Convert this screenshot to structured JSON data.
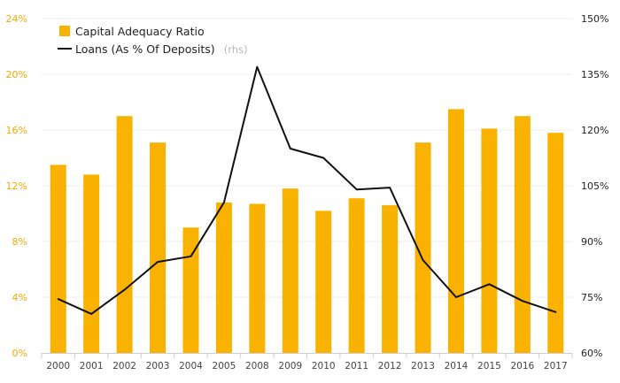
{
  "chart_data": {
    "type": "bar",
    "categories": [
      "2000",
      "2001",
      "2002",
      "2003",
      "2004",
      "2005",
      "2008",
      "2009",
      "2010",
      "2011",
      "2012",
      "2013",
      "2014",
      "2015",
      "2016",
      "2017"
    ],
    "series": [
      {
        "name": "Capital Adequacy Ratio",
        "type": "bar",
        "axis": "left",
        "values": [
          13.5,
          12.8,
          17.0,
          15.1,
          9.0,
          10.8,
          10.7,
          11.8,
          10.2,
          11.1,
          10.6,
          15.1,
          17.5,
          16.1,
          17.0,
          15.8
        ]
      },
      {
        "name": "Loans (As % Of Deposits)",
        "type": "line",
        "axis": "right",
        "values": [
          74.5,
          70.5,
          77.0,
          84.5,
          86.0,
          100.5,
          137.0,
          115.0,
          112.5,
          104.0,
          104.5,
          85.0,
          75.0,
          78.5,
          74.0,
          71.0
        ]
      }
    ],
    "y_left": {
      "range": [
        0,
        24
      ],
      "ticks": [
        0,
        4,
        8,
        12,
        16,
        20,
        24
      ],
      "tick_labels": [
        "0%",
        "4%",
        "8%",
        "12%",
        "16%",
        "20%",
        "24%"
      ]
    },
    "y_right": {
      "range": [
        60,
        150
      ],
      "ticks": [
        60,
        75,
        90,
        105,
        120,
        135,
        150
      ],
      "tick_labels": [
        "60%",
        "75%",
        "90%",
        "105%",
        "120%",
        "135%",
        "150%"
      ]
    },
    "legend": {
      "placement": "top-left",
      "items": [
        {
          "label": "Capital Adequacy Ratio",
          "symbol": "square"
        },
        {
          "label": "Loans (As % Of Deposits)",
          "suffix": "(rhs)",
          "symbol": "line"
        }
      ]
    },
    "title": "",
    "xlabel": "",
    "ylabel": "",
    "grid": true,
    "colors": {
      "bar": "#f9b200",
      "line": "#111111",
      "grid": "#eeeeee",
      "left_axis_text": "#f5a800",
      "right_axis_text": "#222222"
    }
  }
}
